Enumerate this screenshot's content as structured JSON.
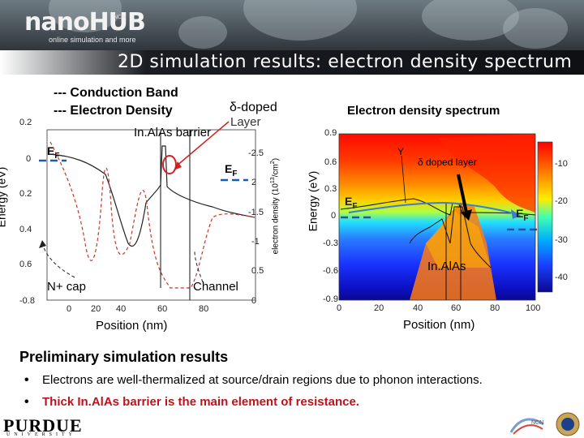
{
  "header": {
    "logo": "nanoHUB",
    "tagline": "online simulation and more",
    "ncn": "NCN",
    "title": "2D simulation results: electron density spectrum"
  },
  "left_plot": {
    "legend_cb": "--- Conduction Band",
    "legend_ed": "--- Electron Density",
    "delta_doped": "δ-doped",
    "layer": "Layer",
    "barrier": "In.AlAs barrier",
    "ef1": "E",
    "ef_sub": "F",
    "ylabel": "Energy (eV)",
    "ylabel_right": "electron density (10",
    "ylabel_right_exp": "13",
    "ylabel_right_end": "/cm",
    "ylabel_right_exp2": "2",
    "ylabel_right_close": ")",
    "xlabel": "Position (nm)",
    "nplus": "N+ cap",
    "channel": "Channel",
    "yticks": [
      "0.2",
      "0",
      "0.2",
      "0.4",
      "0.6",
      "-0.8"
    ],
    "yticks_right": [
      "-2.5",
      "2",
      "-1.5",
      "-1",
      "0.5",
      "0"
    ],
    "xticks": [
      "0",
      "20",
      "40",
      "60",
      "80"
    ]
  },
  "right_plot": {
    "title": "Electron density spectrum",
    "ylabel": "Energy (eV)",
    "xlabel": "Position (nm)",
    "gamma": "Y",
    "delta_layer": "δ doped layer",
    "inalas": "In.AlAs",
    "yticks": [
      "0.9",
      "0.6",
      "0.3",
      "0",
      "-0.3",
      "-0.6",
      "-0.9"
    ],
    "xticks": [
      "0",
      "20",
      "40",
      "60",
      "80",
      "100"
    ],
    "colorbar_ticks": [
      "-10",
      "-20",
      "-30",
      "-40"
    ]
  },
  "results": {
    "heading": "Preliminary simulation results",
    "bullet_char": "•",
    "items": [
      "Electrons are well-thermalized at source/drain regions due to phonon interactions.",
      "Thick In.AlAs barrier is the main element of resistance."
    ]
  },
  "footer": {
    "purdue": "PURDUE",
    "university": "UNIVERSITY"
  }
}
